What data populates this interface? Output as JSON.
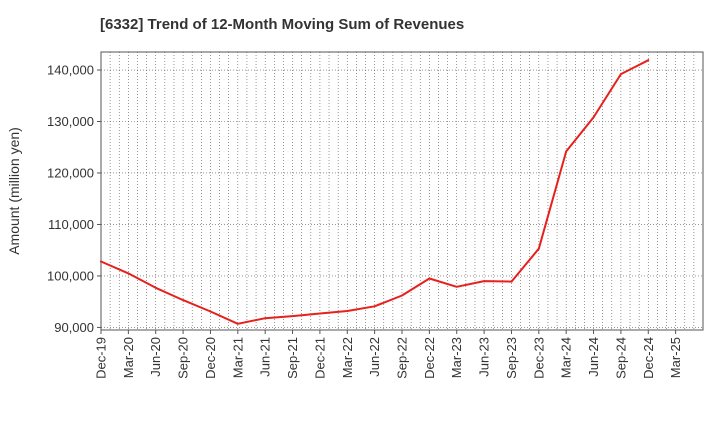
{
  "chart_data": {
    "type": "line",
    "title": "[6332]  Trend of 12-Month Moving Sum of Revenues",
    "xlabel": "",
    "ylabel": "Amount (million yen)",
    "ylim": [
      89500,
      143500
    ],
    "yticks": [
      90000,
      100000,
      110000,
      120000,
      130000,
      140000
    ],
    "ytick_labels": [
      "90,000",
      "100,000",
      "110,000",
      "120,000",
      "130,000",
      "140,000"
    ],
    "categories": [
      "Dec-19",
      "Mar-20",
      "Jun-20",
      "Sep-20",
      "Dec-20",
      "Mar-21",
      "Jun-21",
      "Sep-21",
      "Dec-21",
      "Mar-22",
      "Jun-22",
      "Sep-22",
      "Dec-22",
      "Mar-23",
      "Jun-23",
      "Sep-23",
      "Dec-23",
      "Mar-24",
      "Jun-24",
      "Sep-24",
      "Dec-24",
      "Mar-25"
    ],
    "grid": true,
    "series": [
      {
        "name": "",
        "color": "#e8201c",
        "values": [
          102800,
          100500,
          97700,
          95300,
          93100,
          90700,
          91800,
          92200,
          92700,
          93200,
          94100,
          96200,
          99500,
          97900,
          99000,
          98900,
          105300,
          124200,
          130800,
          139200,
          141900,
          null
        ]
      }
    ]
  }
}
